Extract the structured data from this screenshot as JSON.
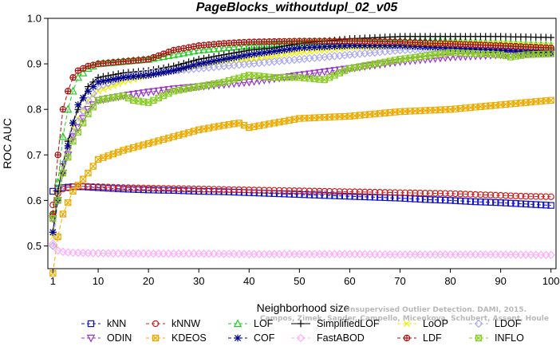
{
  "chart_data": {
    "type": "line",
    "title": "PageBlocks_withoutdupl_02_v05",
    "xlabel": "Neighborhood size",
    "ylabel": "ROC AUC",
    "xlim": [
      0,
      101
    ],
    "ylim": [
      0.45,
      1.0
    ],
    "xticks": [
      1,
      10,
      20,
      30,
      40,
      50,
      60,
      70,
      80,
      90,
      100
    ],
    "yticks": [
      0.5,
      0.6,
      0.7,
      0.8,
      0.9,
      1.0
    ],
    "grid": false,
    "legend_position": "bottom",
    "series": [
      {
        "name": "kNN",
        "color": "#1010c8",
        "marker": "square",
        "dash": "5,3",
        "x": [
          1,
          2,
          3,
          5,
          7,
          10,
          15,
          20,
          25,
          30,
          35,
          40,
          45,
          50,
          55,
          60,
          65,
          70,
          75,
          80,
          85,
          90,
          95,
          100
        ],
        "y": [
          0.62,
          0.625,
          0.628,
          0.63,
          0.63,
          0.628,
          0.625,
          0.623,
          0.622,
          0.62,
          0.619,
          0.617,
          0.615,
          0.613,
          0.611,
          0.609,
          0.607,
          0.605,
          0.602,
          0.6,
          0.597,
          0.595,
          0.592,
          0.589
        ]
      },
      {
        "name": "kNNW",
        "color": "#cc2020",
        "marker": "circle",
        "dash": "5,3",
        "x": [
          1,
          2,
          3,
          5,
          7,
          10,
          15,
          20,
          25,
          30,
          35,
          40,
          45,
          50,
          55,
          60,
          65,
          70,
          75,
          80,
          85,
          90,
          95,
          100
        ],
        "y": [
          0.59,
          0.615,
          0.625,
          0.63,
          0.631,
          0.63,
          0.628,
          0.627,
          0.626,
          0.625,
          0.624,
          0.623,
          0.622,
          0.621,
          0.62,
          0.619,
          0.618,
          0.617,
          0.616,
          0.615,
          0.613,
          0.611,
          0.609,
          0.608
        ]
      },
      {
        "name": "LOF",
        "color": "#22cc22",
        "marker": "triangle",
        "dash": "5,3",
        "x": [
          1,
          2,
          3,
          4,
          5,
          6,
          8,
          10,
          15,
          20,
          25,
          30,
          35,
          40,
          50,
          60,
          70,
          80,
          90,
          100
        ],
        "y": [
          0.57,
          0.64,
          0.74,
          0.8,
          0.84,
          0.87,
          0.89,
          0.9,
          0.905,
          0.91,
          0.92,
          0.93,
          0.935,
          0.94,
          0.948,
          0.95,
          0.95,
          0.95,
          0.945,
          0.94
        ]
      },
      {
        "name": "SimplifiedLOF",
        "color": "#000000",
        "marker": "plus",
        "dash": "",
        "x": [
          1,
          2,
          3,
          4,
          5,
          6,
          8,
          10,
          15,
          20,
          25,
          30,
          35,
          40,
          45,
          50,
          55,
          60,
          70,
          80,
          90,
          100
        ],
        "y": [
          0.53,
          0.62,
          0.68,
          0.73,
          0.77,
          0.8,
          0.85,
          0.87,
          0.88,
          0.885,
          0.895,
          0.91,
          0.92,
          0.93,
          0.935,
          0.945,
          0.95,
          0.955,
          0.96,
          0.96,
          0.96,
          0.958
        ]
      },
      {
        "name": "LoOP",
        "color": "#eeee00",
        "marker": "x",
        "dash": "5,3",
        "x": [
          1,
          2,
          3,
          5,
          8,
          10,
          15,
          20,
          25,
          30,
          40,
          50,
          60,
          70,
          80,
          90,
          100
        ],
        "y": [
          0.52,
          0.6,
          0.67,
          0.76,
          0.82,
          0.84,
          0.86,
          0.875,
          0.885,
          0.895,
          0.91,
          0.925,
          0.935,
          0.94,
          0.945,
          0.945,
          0.94
        ]
      },
      {
        "name": "LDOF",
        "color": "#aaaaee",
        "marker": "diamond",
        "dash": "5,3",
        "x": [
          1,
          2,
          3,
          5,
          8,
          10,
          15,
          20,
          25,
          30,
          40,
          50,
          60,
          70,
          80,
          90,
          100
        ],
        "y": [
          0.5,
          0.6,
          0.68,
          0.75,
          0.82,
          0.85,
          0.87,
          0.88,
          0.885,
          0.89,
          0.9,
          0.91,
          0.92,
          0.93,
          0.935,
          0.935,
          0.93
        ]
      },
      {
        "name": "ODIN",
        "color": "#9933cc",
        "marker": "triangle-down",
        "dash": "5,3",
        "x": [
          1,
          2,
          3,
          5,
          8,
          10,
          15,
          20,
          25,
          30,
          40,
          50,
          60,
          70,
          80,
          90,
          95,
          100
        ],
        "y": [
          0.56,
          0.6,
          0.66,
          0.74,
          0.8,
          0.82,
          0.83,
          0.838,
          0.845,
          0.85,
          0.86,
          0.875,
          0.89,
          0.905,
          0.915,
          0.92,
          0.922,
          0.924
        ]
      },
      {
        "name": "KDEOS",
        "color": "#eeaa00",
        "marker": "box-x",
        "dash": "5,3",
        "x": [
          1,
          2,
          3,
          5,
          8,
          10,
          15,
          20,
          25,
          30,
          35,
          38,
          40,
          45,
          50,
          60,
          70,
          80,
          90,
          100
        ],
        "y": [
          0.44,
          0.52,
          0.57,
          0.62,
          0.66,
          0.69,
          0.71,
          0.725,
          0.74,
          0.755,
          0.765,
          0.77,
          0.76,
          0.77,
          0.78,
          0.785,
          0.795,
          0.8,
          0.81,
          0.82
        ]
      },
      {
        "name": "COF",
        "color": "#000088",
        "marker": "star",
        "dash": "5,3",
        "x": [
          1,
          2,
          3,
          4,
          5,
          6,
          8,
          10,
          15,
          20,
          25,
          30,
          40,
          50,
          60,
          70,
          80,
          90,
          100
        ],
        "y": [
          0.53,
          0.6,
          0.66,
          0.72,
          0.77,
          0.81,
          0.84,
          0.86,
          0.87,
          0.875,
          0.885,
          0.9,
          0.92,
          0.935,
          0.94,
          0.94,
          0.935,
          0.93,
          0.925
        ]
      },
      {
        "name": "FastABOD",
        "color": "#ffaaff",
        "marker": "diamond",
        "dash": "5,3",
        "x": [
          1,
          2,
          3,
          5,
          10,
          20,
          30,
          40,
          50,
          60,
          70,
          80,
          90,
          100
        ],
        "y": [
          0.505,
          0.49,
          0.487,
          0.485,
          0.484,
          0.483,
          0.483,
          0.482,
          0.482,
          0.482,
          0.481,
          0.481,
          0.481,
          0.48
        ]
      },
      {
        "name": "LDF",
        "color": "#aa1111",
        "marker": "circle-plus",
        "dash": "5,3",
        "x": [
          1,
          2,
          3,
          4,
          5,
          6,
          8,
          10,
          15,
          20,
          25,
          30,
          35,
          40,
          50,
          60,
          70,
          80,
          90,
          100
        ],
        "y": [
          0.57,
          0.7,
          0.8,
          0.84,
          0.87,
          0.885,
          0.895,
          0.9,
          0.905,
          0.91,
          0.93,
          0.94,
          0.945,
          0.948,
          0.95,
          0.95,
          0.948,
          0.944,
          0.94,
          0.935
        ]
      },
      {
        "name": "INFLO",
        "color": "#88cc22",
        "marker": "box-x",
        "dash": "5,3",
        "x": [
          1,
          2,
          3,
          5,
          8,
          10,
          15,
          17,
          20,
          23,
          25,
          30,
          35,
          40,
          45,
          50,
          55,
          60,
          70,
          80,
          90,
          92,
          95,
          100
        ],
        "y": [
          0.56,
          0.6,
          0.66,
          0.73,
          0.79,
          0.82,
          0.83,
          0.82,
          0.815,
          0.83,
          0.84,
          0.85,
          0.86,
          0.875,
          0.87,
          0.87,
          0.865,
          0.89,
          0.91,
          0.925,
          0.92,
          0.915,
          0.92,
          0.922
        ]
      }
    ]
  },
  "watermark": {
    "line1": "Unsupervised Outlier Detection. DAMI, 2015.",
    "line2": "Campos, Zimek, Sander, Campello, Micenkova, Schubert, Assent, Houle"
  }
}
